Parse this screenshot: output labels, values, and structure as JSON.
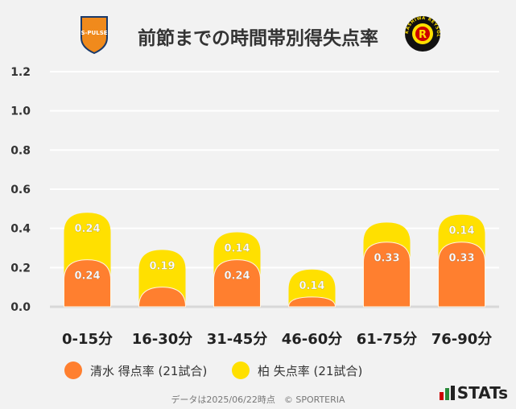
{
  "header": {
    "title": "前節までの時間帯別得失点率",
    "home_logo_text": "S-PULSE",
    "away_logo_text": "KASHIWA REYSOL"
  },
  "chart_data": {
    "type": "bar",
    "stacked": true,
    "categories": [
      "0-15分",
      "16-30分",
      "31-45分",
      "46-60分",
      "61-75分",
      "76-90分"
    ],
    "series": [
      {
        "name": "清水 得点率 (21試合)",
        "color": "#ff7f2f",
        "values": [
          0.24,
          0.1,
          0.24,
          0.05,
          0.33,
          0.33
        ],
        "labels": [
          "0.24",
          "",
          "0.24",
          "",
          "0.33",
          "0.33"
        ]
      },
      {
        "name": "柏 失点率 (21試合)",
        "color": "#ffe000",
        "values": [
          0.24,
          0.19,
          0.14,
          0.14,
          0.1,
          0.14
        ],
        "labels": [
          "0.24",
          "0.19",
          "0.14",
          "0.14",
          "",
          "0.14"
        ]
      }
    ],
    "yticks": [
      "0.0",
      "0.2",
      "0.4",
      "0.6",
      "0.8",
      "1.0",
      "1.2"
    ],
    "ylim": [
      0,
      1.2
    ],
    "grid": true,
    "legend": "bottom"
  },
  "footer": {
    "text": "データは2025/06/22時点　© SPORTERIA",
    "brand": "STATs"
  }
}
